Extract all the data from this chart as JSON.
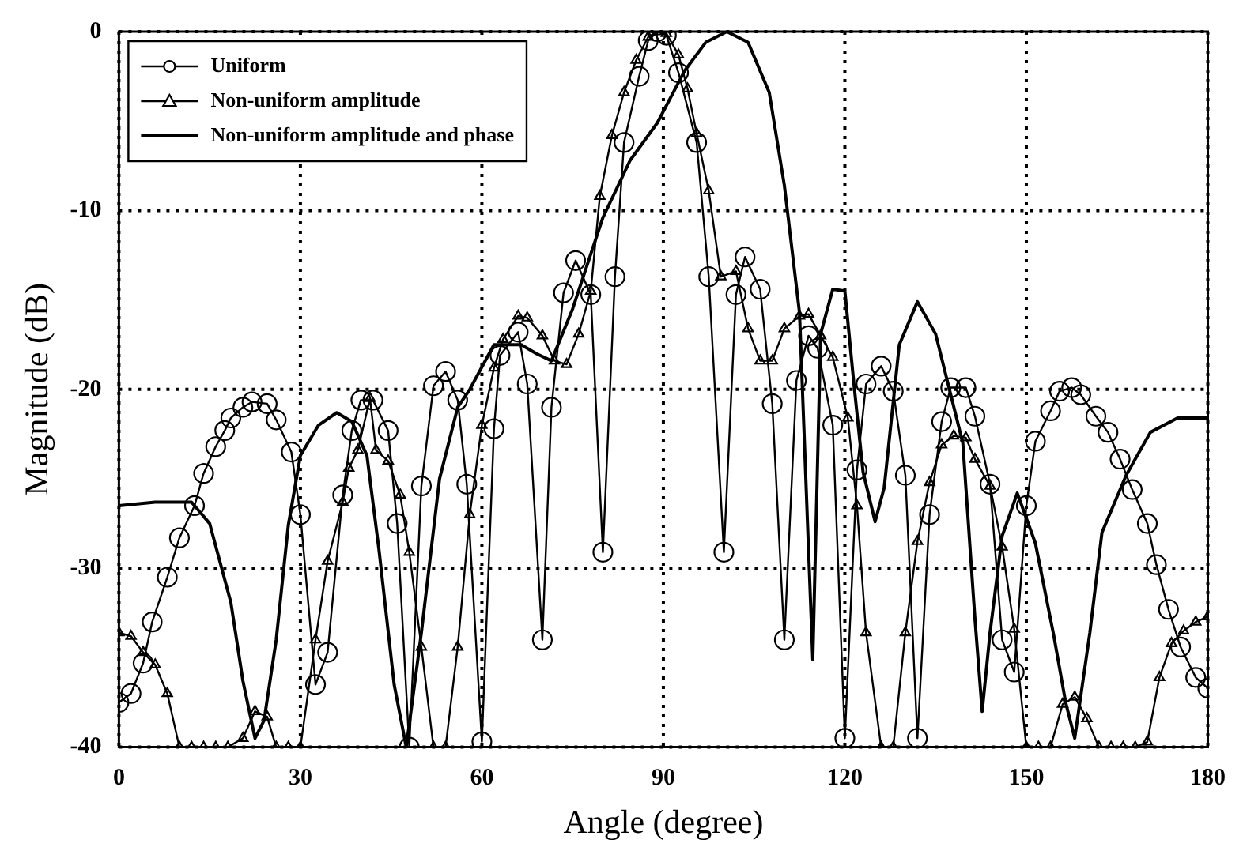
{
  "chart_data": {
    "type": "line",
    "xlabel": "Angle (degree)",
    "ylabel": "Magnitude (dB)",
    "xlim": [
      0,
      180
    ],
    "ylim": [
      -40,
      0
    ],
    "xticks": [
      0,
      30,
      60,
      90,
      120,
      150,
      180
    ],
    "yticks": [
      -40,
      -30,
      -20,
      -10,
      0
    ],
    "grid": true,
    "legend": "top left",
    "line_style": "solid",
    "series": [
      {
        "name": "Uniform",
        "color": "#000000",
        "marker": "circle",
        "x": [
          0,
          2,
          4,
          5.5,
          8,
          10,
          12.5,
          14,
          16,
          17.5,
          18.5,
          20.5,
          22,
          24.5,
          26,
          28.5,
          30,
          32.5,
          34.5,
          37,
          38.5,
          40,
          42,
          44.5,
          46,
          48,
          50,
          52,
          54,
          56,
          57.5,
          60,
          62,
          63,
          66,
          67.5,
          70,
          71.5,
          73.5,
          75.5,
          78,
          80,
          82,
          83.5,
          86,
          87.5,
          89,
          90.5,
          92.5,
          95.5,
          97.5,
          100,
          102,
          103.5,
          106,
          108,
          110,
          112,
          114,
          115.5,
          118,
          120,
          122,
          123.5,
          126,
          128,
          130,
          132,
          134,
          136,
          137.5,
          140,
          141.5,
          144,
          146,
          148,
          150,
          151.5,
          154,
          155.5,
          157.5,
          159,
          161.5,
          163.5,
          165.5,
          167.5,
          170,
          171.5,
          173.5,
          175.5,
          178,
          180
        ],
        "values": [
          -37.5,
          -37,
          -35.3,
          -33,
          -30.5,
          -28.3,
          -26.5,
          -24.7,
          -23.2,
          -22.3,
          -21.6,
          -21,
          -20.7,
          -20.8,
          -21.7,
          -23.5,
          -27,
          -36.5,
          -34.7,
          -25.9,
          -22.3,
          -20.6,
          -20.6,
          -22.3,
          -27.5,
          -40,
          -25.4,
          -19.8,
          -19,
          -20.6,
          -25.3,
          -39.7,
          -22.2,
          -18.1,
          -16.8,
          -19.7,
          -34,
          -21,
          -14.6,
          -12.8,
          -14.7,
          -29.1,
          -13.7,
          -6.2,
          -2.5,
          -0.5,
          0,
          -0.2,
          -2.3,
          -6.2,
          -13.7,
          -29.1,
          -14.7,
          -12.6,
          -14.4,
          -20.8,
          -34,
          -19.5,
          -17,
          -17.7,
          -22,
          -39.5,
          -24.5,
          -19.7,
          -18.7,
          -20.1,
          -24.8,
          -39.5,
          -27,
          -21.8,
          -19.9,
          -19.9,
          -21.5,
          -25.3,
          -34,
          -35.8,
          -26.5,
          -22.9,
          -21.2,
          -20.1,
          -19.9,
          -20.3,
          -21.5,
          -22.4,
          -23.9,
          -25.6,
          -27.5,
          -29.8,
          -32.3,
          -34.4,
          -36.1,
          -36.7
        ]
      },
      {
        "name": "Non-uniform amplitude",
        "color": "#000000",
        "marker": "triangle",
        "x": [
          0,
          2,
          4,
          6,
          8,
          10,
          12,
          14,
          16,
          18,
          20.5,
          22.5,
          24.5,
          26,
          28,
          30,
          32.5,
          34.5,
          37,
          38,
          39.5,
          41.5,
          42.5,
          44.5,
          46.5,
          48,
          50,
          52,
          54,
          56,
          58,
          60,
          62,
          63.5,
          66,
          67.5,
          70,
          72,
          74,
          76,
          78,
          79.5,
          81.5,
          83.5,
          85.5,
          87.5,
          89,
          90.5,
          92.5,
          94,
          95.5,
          97.5,
          99.5,
          102,
          104,
          106,
          108,
          110,
          112.5,
          114,
          116,
          118,
          120.5,
          122,
          123.5,
          126,
          128,
          130,
          132,
          134,
          136,
          138,
          140,
          141.5,
          144,
          146,
          148,
          150,
          152,
          154,
          156,
          158,
          160,
          162,
          164,
          166,
          168,
          170,
          172,
          174,
          176,
          178,
          180
        ],
        "values": [
          -33.6,
          -33.8,
          -34.7,
          -35.4,
          -37,
          -40,
          -40,
          -40,
          -40,
          -40,
          -39.5,
          -38,
          -38.3,
          -40,
          -40,
          -40,
          -34,
          -29.6,
          -26.3,
          -24.4,
          -23.4,
          -20.5,
          -23.4,
          -24,
          -25.9,
          -29.1,
          -34.4,
          -40,
          -40,
          -34.4,
          -27,
          -22,
          -18.8,
          -17.2,
          -15.9,
          -16,
          -17,
          -18.4,
          -18.6,
          -16.9,
          -14.5,
          -9.2,
          -5.8,
          -3.4,
          -1.6,
          -0.3,
          0,
          -0.1,
          -1.3,
          -3.2,
          -5.7,
          -8.9,
          -13.7,
          -13.4,
          -16.6,
          -18.4,
          -18.4,
          -16.6,
          -15.9,
          -15.8,
          -17,
          -18.2,
          -21.6,
          -26.5,
          -33.6,
          -40,
          -40,
          -33.6,
          -28.5,
          -25.2,
          -23.1,
          -22.6,
          -22.7,
          -23.9,
          -25.4,
          -28.8,
          -33.4,
          -40,
          -40,
          -40,
          -37.6,
          -37.2,
          -38.4,
          -40,
          -40,
          -40,
          -40,
          -39.7,
          -36.1,
          -34.2,
          -33.5,
          -33,
          -32.7
        ]
      },
      {
        "name": "Non-uniform amplitude and phase",
        "color": "#000000",
        "marker": "none",
        "x": [
          0,
          6,
          12,
          15,
          18.5,
          20.5,
          22.5,
          24,
          26,
          28,
          30,
          33,
          36,
          38.5,
          41,
          43,
          45.5,
          47.5,
          50,
          53,
          56,
          58,
          62,
          66.5,
          69,
          71.5,
          75,
          80,
          84.5,
          89,
          93.5,
          97,
          100.5,
          104,
          107.5,
          110,
          112.5,
          114,
          114.7,
          116,
          118,
          120,
          121.5,
          123,
          125,
          126.5,
          129,
          132,
          135,
          139.5,
          141.5,
          142.7,
          144,
          146,
          148.5,
          151.5,
          154.5,
          156.5,
          158,
          160.5,
          162.5,
          166.5,
          170.5,
          175,
          180
        ],
        "values": [
          -26.5,
          -26.3,
          -26.3,
          -27.5,
          -31.9,
          -36.3,
          -39.5,
          -38.5,
          -34,
          -27.6,
          -23.7,
          -22,
          -21.3,
          -21.8,
          -23.7,
          -29,
          -36.5,
          -40,
          -33.6,
          -25,
          -21,
          -20,
          -17.5,
          -17.5,
          -18,
          -18.4,
          -15.5,
          -10.4,
          -7.2,
          -5.1,
          -2.2,
          -0.6,
          0,
          -0.6,
          -3.4,
          -8.6,
          -15.7,
          -29,
          -35.1,
          -16.9,
          -14.4,
          -14.5,
          -19.7,
          -24.6,
          -27.4,
          -25.5,
          -17.5,
          -15.1,
          -16.9,
          -23,
          -32.8,
          -38,
          -33.6,
          -28.2,
          -25.8,
          -28.6,
          -33.7,
          -37.5,
          -39.5,
          -33.6,
          -28,
          -24.8,
          -22.4,
          -21.6,
          -21.6
        ]
      }
    ]
  }
}
